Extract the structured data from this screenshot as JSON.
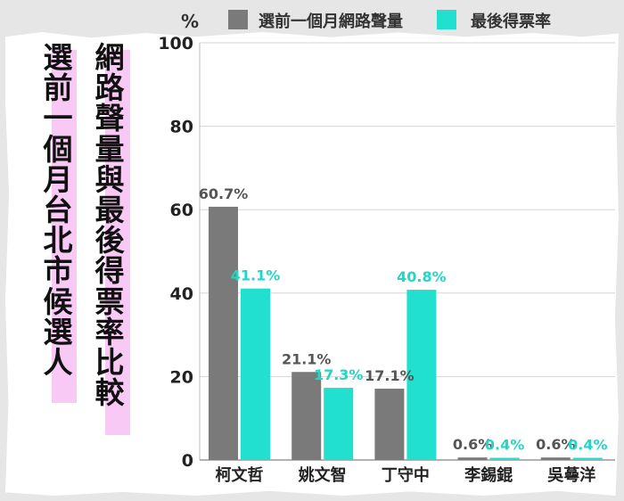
{
  "titles": {
    "title_a": "網路聲量與最後得票率比較",
    "title_b": "選前一個月台北市候選人"
  },
  "chart_data": {
    "type": "bar",
    "unit_label": "%",
    "categories": [
      "柯文哲",
      "姚文智",
      "丁守中",
      "李錫錕",
      "吳蕚洋"
    ],
    "series": [
      {
        "name": "選前一個月網路聲量",
        "values": [
          60.7,
          21.1,
          17.1,
          0.6,
          0.6
        ],
        "color": "#7a7a7a",
        "label_color": "#555555"
      },
      {
        "name": "最後得票率",
        "values": [
          41.1,
          17.3,
          40.8,
          0.4,
          0.4
        ],
        "color": "#22e0cf",
        "label_color": "#22d6c6"
      }
    ],
    "value_labels": [
      [
        "60.7%",
        "21.1%",
        "17.1%",
        "0.6%",
        "0.6%"
      ],
      [
        "41.1%",
        "17.3%",
        "40.8%",
        "0.4%",
        "0.4%"
      ]
    ],
    "yticks": [
      0,
      20,
      40,
      60,
      80,
      100
    ],
    "ylim": [
      0,
      100
    ],
    "grid": true,
    "legend_position": "top"
  }
}
